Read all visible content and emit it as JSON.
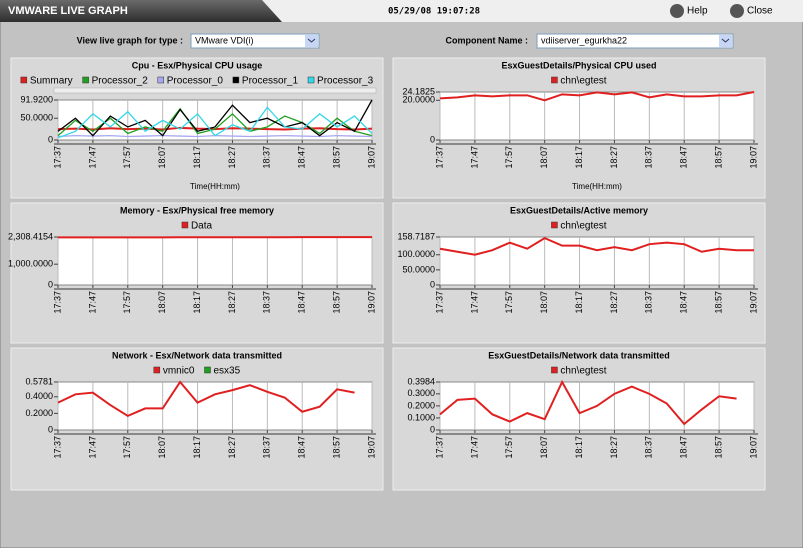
{
  "header": {
    "title": "VMWARE LIVE GRAPH",
    "timestamp": "05/29/08 19:07:28",
    "help": "Help",
    "close": "Close"
  },
  "controls": {
    "type_label": "View live graph for type :",
    "type_value": "VMware VDI(i)",
    "component_label": "Component Name :",
    "component_value": "vdiiserver_egurkha22"
  },
  "chart_data": [
    {
      "type": "line",
      "title": "Cpu - Esx/Physical CPU usage",
      "xlabel": "Time(HH:mm)",
      "x": [
        "17:37",
        "17:42",
        "17:47",
        "17:52",
        "17:57",
        "18:02",
        "18:07",
        "18:12",
        "18:17",
        "18:22",
        "18:27",
        "18:32",
        "18:37",
        "18:42",
        "18:47",
        "18:52",
        "18:57",
        "19:02",
        "19:07"
      ],
      "xticks": [
        "17:37",
        "17:47",
        "17:57",
        "18:07",
        "18:17",
        "18:27",
        "18:37",
        "18:47",
        "18:57",
        "19:07"
      ],
      "ylim": [
        0,
        91.92
      ],
      "yticks": [
        0,
        {
          "value": 50,
          "label": "50.0000"
        },
        {
          "value": 91.92,
          "label": "91.9200"
        }
      ],
      "grid": true,
      "series": [
        {
          "name": "Summary",
          "color": "#e02020",
          "values": [
            25,
            26,
            24,
            27,
            25,
            26,
            24,
            28,
            26,
            25,
            27,
            26,
            25,
            24,
            26,
            27,
            25,
            24,
            26
          ]
        },
        {
          "name": "Processor_2",
          "color": "#20a020",
          "values": [
            10,
            45,
            20,
            50,
            15,
            30,
            20,
            72,
            15,
            25,
            60,
            20,
            30,
            55,
            40,
            15,
            50,
            20,
            10
          ]
        },
        {
          "name": "Processor_0",
          "color": "#a8a8f0",
          "values": [
            8,
            10,
            9,
            10,
            8,
            9,
            10,
            9,
            8,
            10,
            9,
            8,
            9,
            10,
            9,
            8,
            10,
            9,
            8
          ]
        },
        {
          "name": "Processor_1",
          "color": "#000000",
          "values": [
            20,
            50,
            10,
            55,
            30,
            45,
            10,
            70,
            20,
            30,
            80,
            40,
            50,
            30,
            40,
            10,
            40,
            20,
            91.92
          ]
        },
        {
          "name": "Processor_3",
          "color": "#30d8e8",
          "values": [
            5,
            20,
            60,
            30,
            65,
            20,
            45,
            25,
            60,
            10,
            35,
            20,
            75,
            30,
            25,
            60,
            30,
            55,
            15
          ]
        }
      ]
    },
    {
      "type": "line",
      "title": "EsxGuestDetails/Physical CPU used",
      "xlabel": "Time(HH:mm)",
      "x": [
        "17:37",
        "17:42",
        "17:47",
        "17:52",
        "17:57",
        "18:02",
        "18:07",
        "18:12",
        "18:17",
        "18:22",
        "18:27",
        "18:32",
        "18:37",
        "18:42",
        "18:47",
        "18:52",
        "18:57",
        "19:02",
        "19:07"
      ],
      "xticks": [
        "17:37",
        "17:47",
        "17:57",
        "18:07",
        "18:17",
        "18:27",
        "18:37",
        "18:47",
        "18:57",
        "19:07"
      ],
      "ylim": [
        0,
        24.1825
      ],
      "yticks": [
        0,
        {
          "value": 20,
          "label": "20.0000"
        },
        {
          "value": 24.1825,
          "label": "24.1825"
        }
      ],
      "grid": true,
      "series": [
        {
          "name": "chn\\egtest",
          "color": "#e02020",
          "values": [
            21,
            21.5,
            22.5,
            22,
            22.5,
            22.5,
            20,
            23,
            22.5,
            24,
            23,
            24,
            21.5,
            23,
            22,
            22,
            22.5,
            22.5,
            24.1825
          ]
        }
      ]
    },
    {
      "type": "line",
      "title": "Memory - Esx/Physical free memory",
      "x": [
        "17:37",
        "17:42",
        "17:47",
        "17:52",
        "17:57",
        "18:02",
        "18:07",
        "18:12",
        "18:17",
        "18:22",
        "18:27",
        "18:32",
        "18:37",
        "18:42",
        "18:47",
        "18:52",
        "18:57",
        "19:02",
        "19:07"
      ],
      "xticks": [
        "17:37",
        "17:47",
        "17:57",
        "18:07",
        "18:17",
        "18:27",
        "18:37",
        "18:47",
        "18:57",
        "19:07"
      ],
      "ylim": [
        0,
        2308.4154
      ],
      "yticks": [
        0,
        {
          "value": 1000,
          "label": "1,000.0000"
        },
        {
          "value": 2308.4154,
          "label": "2,308.4154"
        }
      ],
      "grid": true,
      "series": [
        {
          "name": "Data",
          "color": "#e02020",
          "values": [
            2290,
            2290,
            2292,
            2291,
            2290,
            2292,
            2293,
            2294,
            2295,
            2296,
            2297,
            2298,
            2298,
            2299,
            2300,
            2300,
            2301,
            2302,
            2303
          ]
        }
      ]
    },
    {
      "type": "line",
      "title": "EsxGuestDetails/Active memory",
      "x": [
        "17:37",
        "17:42",
        "17:47",
        "17:52",
        "17:57",
        "18:02",
        "18:07",
        "18:12",
        "18:17",
        "18:22",
        "18:27",
        "18:32",
        "18:37",
        "18:42",
        "18:47",
        "18:52",
        "18:57",
        "19:02",
        "19:07"
      ],
      "xticks": [
        "17:37",
        "17:47",
        "17:57",
        "18:07",
        "18:17",
        "18:27",
        "18:37",
        "18:47",
        "18:57",
        "19:07"
      ],
      "ylim": [
        0,
        158.7187
      ],
      "yticks": [
        0,
        {
          "value": 50,
          "label": "50.0000"
        },
        {
          "value": 100,
          "label": "100.0000"
        },
        {
          "value": 158.7187,
          "label": "158.7187"
        }
      ],
      "grid": true,
      "series": [
        {
          "name": "chn\\egtest",
          "color": "#e02020",
          "values": [
            120,
            110,
            100,
            115,
            140,
            120,
            155,
            130,
            130,
            115,
            125,
            115,
            135,
            140,
            135,
            110,
            120,
            115,
            115
          ]
        }
      ]
    },
    {
      "type": "line",
      "title": "Network - Esx/Network data transmitted",
      "x": [
        "17:37",
        "17:42",
        "17:47",
        "17:52",
        "17:57",
        "18:02",
        "18:07",
        "18:12",
        "18:17",
        "18:22",
        "18:27",
        "18:32",
        "18:37",
        "18:42",
        "18:47",
        "18:52",
        "18:57",
        "19:02",
        "19:07"
      ],
      "xticks": [
        "17:37",
        "17:47",
        "17:57",
        "18:07",
        "18:17",
        "18:27",
        "18:37",
        "18:47",
        "18:57",
        "19:07"
      ],
      "ylim": [
        0,
        0.5781
      ],
      "yticks": [
        0,
        {
          "value": 0.2,
          "label": "0.2000"
        },
        {
          "value": 0.4,
          "label": "0.4000"
        },
        {
          "value": 0.5781,
          "label": "0.5781"
        }
      ],
      "grid": true,
      "series": [
        {
          "name": "vmnic0",
          "color": "#e02020",
          "values": [
            0.33,
            0.43,
            0.45,
            0.3,
            0.17,
            0.26,
            0.26,
            0.5781,
            0.33,
            0.43,
            0.48,
            0.54,
            0.46,
            0.39,
            0.22,
            0.28,
            0.49,
            0.45,
            null
          ]
        },
        {
          "name": "esx35",
          "color": "#20a020",
          "values": [
            null,
            null,
            null,
            null,
            null,
            null,
            null,
            null,
            null,
            null,
            null,
            null,
            null,
            null,
            null,
            null,
            null,
            null,
            null
          ]
        }
      ]
    },
    {
      "type": "line",
      "title": "EsxGuestDetails/Network data transmitted",
      "x": [
        "17:37",
        "17:42",
        "17:47",
        "17:52",
        "17:57",
        "18:02",
        "18:07",
        "18:12",
        "18:17",
        "18:22",
        "18:27",
        "18:32",
        "18:37",
        "18:42",
        "18:47",
        "18:52",
        "18:57",
        "19:02",
        "19:07"
      ],
      "xticks": [
        "17:37",
        "17:47",
        "17:57",
        "18:07",
        "18:17",
        "18:27",
        "18:37",
        "18:47",
        "18:57",
        "19:07"
      ],
      "ylim": [
        0,
        0.3984
      ],
      "yticks": [
        0,
        {
          "value": 0.1,
          "label": "0.1000"
        },
        {
          "value": 0.2,
          "label": "0.2000"
        },
        {
          "value": 0.3,
          "label": "0.3000"
        },
        {
          "value": 0.3984,
          "label": "0.3984"
        }
      ],
      "grid": true,
      "series": [
        {
          "name": "chn\\egtest",
          "color": "#e02020",
          "values": [
            0.13,
            0.25,
            0.26,
            0.13,
            0.07,
            0.14,
            0.09,
            0.3984,
            0.14,
            0.2,
            0.3,
            0.36,
            0.3,
            0.22,
            0.05,
            0.17,
            0.28,
            0.26,
            null
          ]
        }
      ]
    }
  ]
}
